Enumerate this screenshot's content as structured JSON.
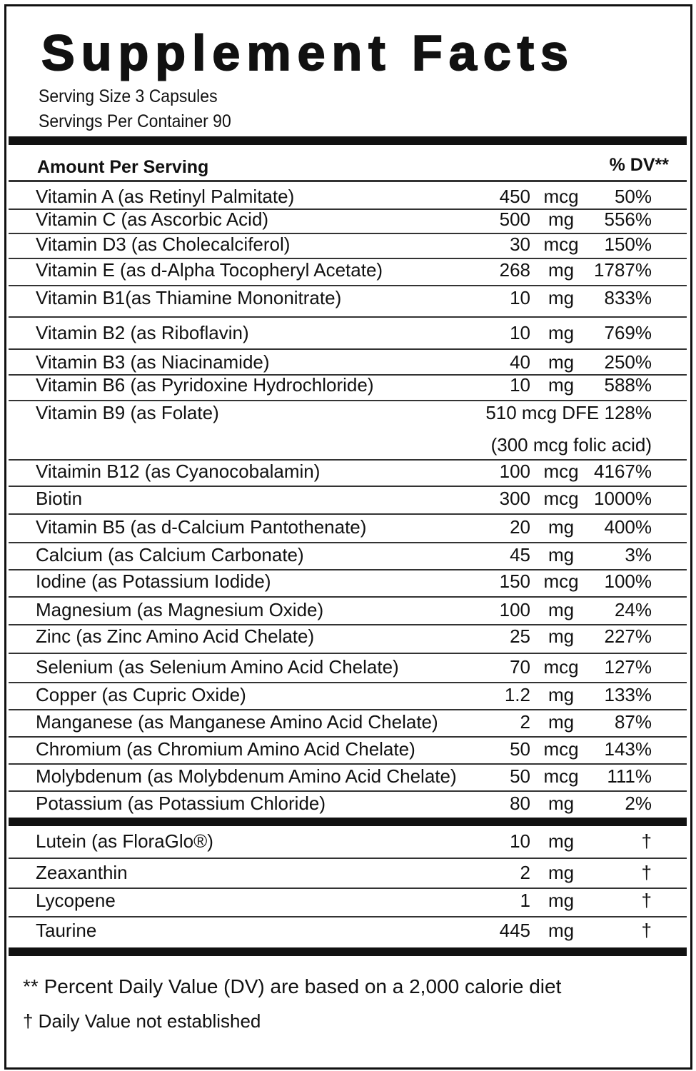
{
  "title": "Supplement Facts",
  "serving_size": "Serving Size 3 Capsules",
  "servings_per_container": "Servings Per Container 90",
  "header": {
    "amount_label": "Amount Per Serving",
    "dv_label": "% DV**"
  },
  "nutrients": [
    {
      "name": "Vitamin A (as Retinyl Palmitate)",
      "amount": "450",
      "unit": "mcg",
      "dv": "50%"
    },
    {
      "name": "Vitamin C (as Ascorbic Acid)",
      "amount": "500",
      "unit": "mg",
      "dv": "556%"
    },
    {
      "name": "Vitamin D3 (as Cholecalciferol)",
      "amount": "30",
      "unit": "mcg",
      "dv": "150%"
    },
    {
      "name": "Vitamin E (as d-Alpha Tocopheryl Acetate)",
      "amount": "268",
      "unit": "mg",
      "dv": "1787%"
    },
    {
      "name": "Vitamin B1(as Thiamine Mononitrate)",
      "amount": "10",
      "unit": "mg",
      "dv": "833%"
    },
    {
      "name": "Vitamin B2 (as Riboflavin)",
      "amount": "10",
      "unit": "mg",
      "dv": "769%"
    },
    {
      "name": "Vitamin B3 (as Niacinamide)",
      "amount": "40",
      "unit": "mg",
      "dv": "250%"
    },
    {
      "name": "Vitamin B6 (as Pyridoxine Hydrochloride)",
      "amount": "10",
      "unit": "mg",
      "dv": "588%"
    },
    {
      "name": "Vitamin B9 (as Folate)",
      "amount_text": "510 mcg DFE 128%",
      "note": "(300 mcg folic acid)"
    },
    {
      "name": "Vitaimin B12 (as Cyanocobalamin)",
      "amount": "100",
      "unit": "mcg",
      "dv": "4167%"
    },
    {
      "name": "Biotin",
      "amount": "300",
      "unit": "mcg",
      "dv": "1000%"
    },
    {
      "name": "Vitamin B5 (as d-Calcium Pantothenate)",
      "amount": "20",
      "unit": "mg",
      "dv": "400%"
    },
    {
      "name": "Calcium (as Calcium Carbonate)",
      "amount": "45",
      "unit": "mg",
      "dv": "3%"
    },
    {
      "name": "Iodine (as Potassium Iodide)",
      "amount": "150",
      "unit": "mcg",
      "dv": "100%"
    },
    {
      "name": "Magnesium (as Magnesium Oxide)",
      "amount": "100",
      "unit": "mg",
      "dv": "24%"
    },
    {
      "name": "Zinc (as Zinc Amino Acid Chelate)",
      "amount": "25",
      "unit": "mg",
      "dv": "227%"
    },
    {
      "name": "Selenium (as Selenium Amino Acid Chelate)",
      "amount": "70",
      "unit": "mcg",
      "dv": "127%"
    },
    {
      "name": "Copper (as Cupric Oxide)",
      "amount": "1.2",
      "unit": "mg",
      "dv": "133%"
    },
    {
      "name": "Manganese (as Manganese Amino Acid Chelate)",
      "amount": "2",
      "unit": "mg",
      "dv": "87%"
    },
    {
      "name": "Chromium (as Chromium Amino Acid Chelate)",
      "amount": "50",
      "unit": "mcg",
      "dv": "143%"
    },
    {
      "name": "Molybdenum (as Molybdenum Amino Acid Chelate)",
      "amount": "50",
      "unit": "mcg",
      "dv": "111%"
    },
    {
      "name": "Potassium (as Potassium Chloride)",
      "amount": "80",
      "unit": "mg",
      "dv": "2%"
    }
  ],
  "other_ingredients": [
    {
      "name": "Lutein (as FloraGlo®)",
      "amount": "10",
      "unit": "mg",
      "dv": "†"
    },
    {
      "name": "Zeaxanthin",
      "amount": "2",
      "unit": "mg",
      "dv": "†"
    },
    {
      "name": "Lycopene",
      "amount": "1",
      "unit": "mg",
      "dv": "†"
    },
    {
      "name": "Taurine",
      "amount": "445",
      "unit": "mg",
      "dv": "†"
    }
  ],
  "footnotes": [
    "** Percent Daily Value (DV) are based on a 2,000 calorie diet",
    "† Daily Value not established"
  ]
}
